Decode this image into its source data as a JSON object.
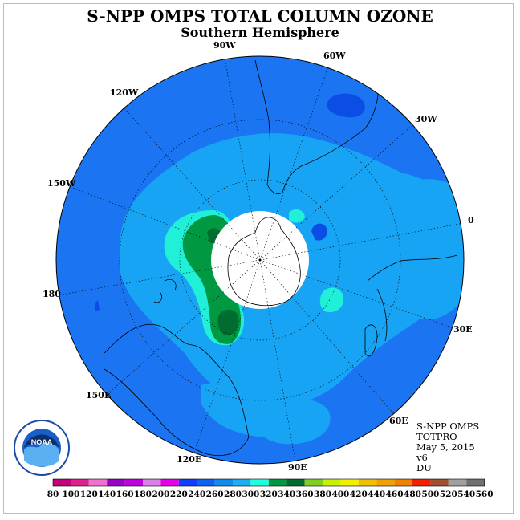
{
  "title": "S-NPP OMPS TOTAL COLUMN OZONE",
  "subtitle": "Southern Hemisphere",
  "longitude_labels": [
    {
      "id": "90w",
      "text": "90W"
    },
    {
      "id": "60w",
      "text": "60W"
    },
    {
      "id": "120w",
      "text": "120W"
    },
    {
      "id": "30w",
      "text": "30W"
    },
    {
      "id": "150w",
      "text": "150W"
    },
    {
      "id": "0",
      "text": "0"
    },
    {
      "id": "180",
      "text": "180"
    },
    {
      "id": "30e",
      "text": "30E"
    },
    {
      "id": "150e",
      "text": "150E"
    },
    {
      "id": "60e",
      "text": "60E"
    },
    {
      "id": "120e",
      "text": "120E"
    },
    {
      "id": "90e",
      "text": "90E"
    }
  ],
  "info": {
    "line1": "S-NPP OMPS",
    "line2": "TOTPRO",
    "line3": "May 5, 2015",
    "line4": "v6",
    "line5": "DU"
  },
  "logo": {
    "text": "NOAA"
  },
  "colorbar": {
    "labels": [
      "80",
      "100",
      "120",
      "140",
      "160",
      "180",
      "200",
      "220",
      "240",
      "260",
      "280",
      "300",
      "320",
      "340",
      "360",
      "380",
      "400",
      "420",
      "440",
      "460",
      "480",
      "500",
      "520",
      "540",
      "560"
    ],
    "colors": [
      "#c4007a",
      "#e0208e",
      "#f070d0",
      "#9a00c8",
      "#c000e0",
      "#d880e8",
      "#e800e8",
      "#1040ff",
      "#0c64f0",
      "#108cf0",
      "#18b0f0",
      "#20ffe0",
      "#009840",
      "#006c30",
      "#80d020",
      "#c8f000",
      "#f0f000",
      "#f0c000",
      "#f0a000",
      "#f08000",
      "#f02000",
      "#a05030",
      "#a0a0a0",
      "#707070"
    ]
  },
  "colors": {
    "ocean_base": "#1b74f2",
    "band_light": "#18a4f4",
    "band_cyan": "#20f0d8",
    "band_green": "#009840",
    "band_dark_green": "#006c30",
    "low_patch": "#0b4ee6"
  }
}
